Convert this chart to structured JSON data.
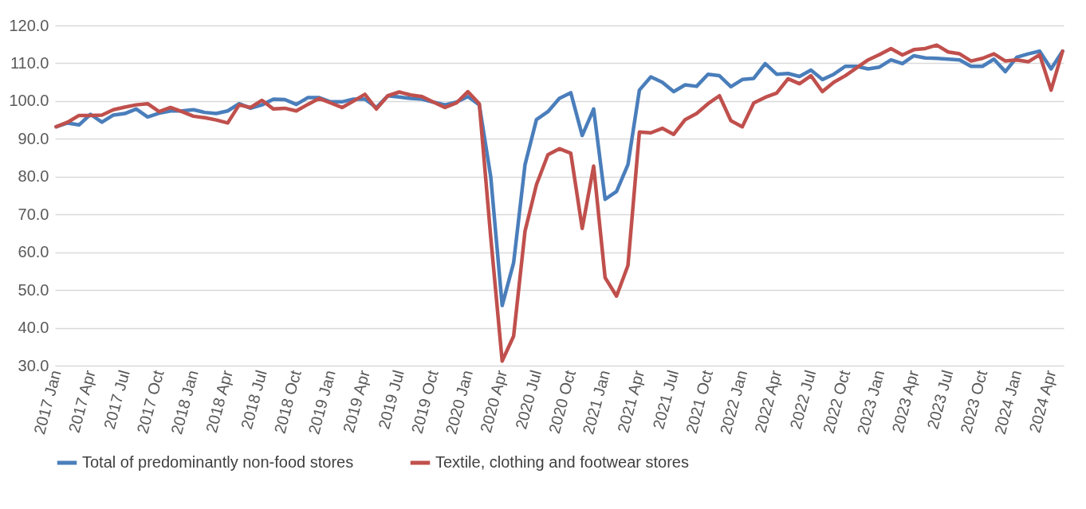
{
  "chart_data": {
    "type": "line",
    "categories": [
      "2017 Jan",
      null,
      null,
      "2017 Apr",
      null,
      null,
      "2017 Jul",
      null,
      null,
      "2017 Oct",
      null,
      null,
      "2018 Jan",
      null,
      null,
      "2018 Apr",
      null,
      null,
      "2018 Jul",
      null,
      null,
      "2018 Oct",
      null,
      null,
      "2019 Jan",
      null,
      null,
      "2019 Apr",
      null,
      null,
      "2019 Jul",
      null,
      null,
      "2019 Oct",
      null,
      null,
      "2020 Jan",
      null,
      null,
      "2020 Apr",
      null,
      null,
      "2020 Jul",
      null,
      null,
      "2020 Oct",
      null,
      null,
      "2021 Jan",
      null,
      null,
      "2021 Apr",
      null,
      null,
      "2021 Jul",
      null,
      null,
      "2021 Oct",
      null,
      null,
      "2022 Jan",
      null,
      null,
      "2022 Apr",
      null,
      null,
      "2022 Jul",
      null,
      null,
      "2022 Oct",
      null,
      null,
      "2023 Jan",
      null,
      null,
      "2023 Apr",
      null,
      null,
      "2023 Jul",
      null,
      null,
      "2023 Oct",
      null,
      null,
      "2024 Jan",
      null,
      null,
      "2024 Apr",
      null
    ],
    "series": [
      {
        "name": "Total of predominantly non-food stores",
        "color": "#4a7ebb",
        "values": [
          93.2,
          94.2,
          93.7,
          96.5,
          94.4,
          96.3,
          96.7,
          97.9,
          95.8,
          96.8,
          97.4,
          97.4,
          97.7,
          97.0,
          96.7,
          97.4,
          99.3,
          98.1,
          99.0,
          100.5,
          100.4,
          99.1,
          100.9,
          100.9,
          99.8,
          99.8,
          100.5,
          100.5,
          98.3,
          101.4,
          101.1,
          100.7,
          100.5,
          99.7,
          99.0,
          99.7,
          101.2,
          99.0,
          80.0,
          45.9,
          57.2,
          83.2,
          95.1,
          97.2,
          100.7,
          102.2,
          90.9,
          97.9,
          74.0,
          76.1,
          83.2,
          102.9,
          106.4,
          105.0,
          102.5,
          104.3,
          103.9,
          107.1,
          106.7,
          103.8,
          105.7,
          106.0,
          109.9,
          107.1,
          107.3,
          106.5,
          108.2,
          105.7,
          107.1,
          109.2,
          109.2,
          108.5,
          109.0,
          110.9,
          109.9,
          112.0,
          111.4,
          111.3,
          111.1,
          110.9,
          109.2,
          109.2,
          111.1,
          107.8,
          111.6,
          112.5,
          113.2,
          108.5,
          113.2
        ]
      },
      {
        "name": "Textile, clothing and footwear stores",
        "color": "#c0504d",
        "values": [
          93.2,
          94.4,
          96.2,
          96.2,
          96.3,
          97.7,
          98.4,
          99.0,
          99.3,
          97.2,
          98.3,
          97.2,
          96.0,
          95.6,
          95.0,
          94.2,
          99.0,
          98.3,
          100.2,
          97.9,
          98.1,
          97.4,
          99.1,
          100.7,
          99.5,
          98.3,
          100.0,
          101.8,
          97.9,
          101.4,
          102.4,
          101.6,
          101.2,
          99.7,
          98.3,
          99.5,
          102.5,
          99.3,
          64.0,
          31.2,
          37.8,
          65.6,
          77.9,
          85.8,
          87.4,
          86.2,
          66.3,
          82.8,
          53.3,
          48.4,
          56.5,
          91.8,
          91.6,
          92.8,
          91.2,
          95.1,
          96.7,
          99.3,
          101.4,
          94.8,
          93.2,
          99.5,
          101.0,
          102.1,
          105.9,
          104.6,
          106.7,
          102.5,
          105.0,
          106.7,
          108.8,
          110.9,
          112.3,
          113.9,
          112.2,
          113.6,
          113.9,
          114.8,
          113.0,
          112.5,
          110.6,
          111.3,
          112.5,
          110.6,
          110.9,
          110.4,
          112.3,
          102.9,
          113.2
        ]
      }
    ],
    "ylim": [
      30,
      120
    ],
    "yticks": [
      {
        "value": 30,
        "label": "30.0"
      },
      {
        "value": 40,
        "label": "40.0"
      },
      {
        "value": 50,
        "label": "50.0"
      },
      {
        "value": 60,
        "label": "60.0"
      },
      {
        "value": 70,
        "label": "70.0"
      },
      {
        "value": 80,
        "label": "80.0"
      },
      {
        "value": 90,
        "label": "90.0"
      },
      {
        "value": 100,
        "label": "100.0"
      },
      {
        "value": 110,
        "label": "110.0"
      },
      {
        "value": 120,
        "label": "120.0"
      }
    ],
    "grid": "y",
    "legend": "bottom"
  }
}
